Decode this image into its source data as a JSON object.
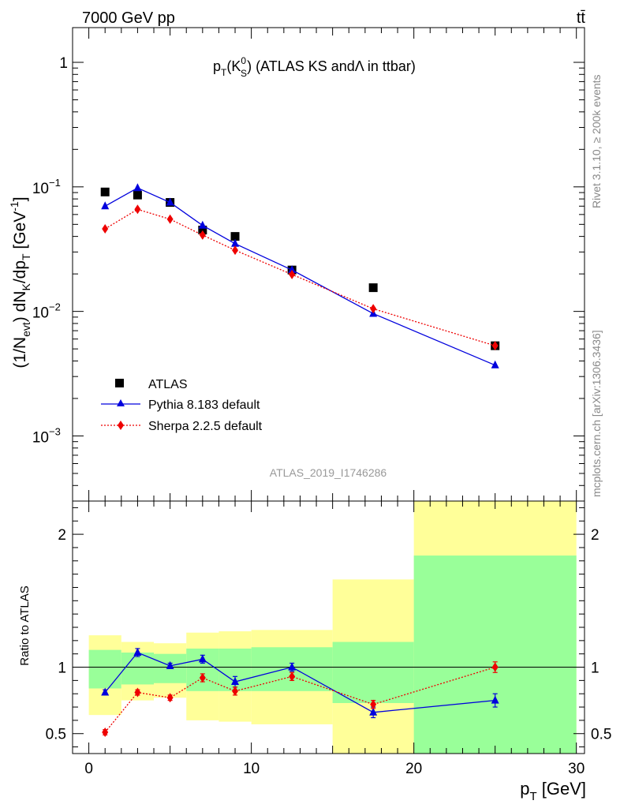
{
  "header": {
    "energy_label": "7000 GeV pp",
    "process_label": "tt̄"
  },
  "side_labels": {
    "rivet": "Rivet 3.1.10, ≥ 200k events",
    "mcplots": "mcplots.cern.ch [arXiv:1306.3436]"
  },
  "chart_data": [
    {
      "type": "scatter",
      "panel": "main",
      "title_parts": {
        "p": "p",
        "T": "T",
        "open": "(K",
        "sup": "0",
        "sub": "S",
        "close": ")",
        "rest": " (ATLAS KS andΛ in ttbar)"
      },
      "watermark": "ATLAS_2019_I1746286",
      "ylabel_parts": {
        "a": "(1/N",
        "b": "evt",
        "c": ") dN",
        "d": "K",
        "e": "/dp",
        "f": "T",
        "g": " [GeV",
        "h": "-1",
        "i": "]"
      },
      "yscale": "log",
      "xlim": [
        -1,
        30.5
      ],
      "ylim": [
        0.0003,
        1.9
      ],
      "yticks": [
        {
          "value": 1,
          "label": "1"
        },
        {
          "value": 0.1,
          "mant": "10",
          "exp": "−1"
        },
        {
          "value": 0.01,
          "mant": "10",
          "exp": "−2"
        },
        {
          "value": 0.001,
          "mant": "10",
          "exp": "−3"
        }
      ],
      "legend_position": "bottom-left",
      "series": [
        {
          "name": "ATLAS",
          "marker": "square",
          "color": "#000000",
          "x": [
            1,
            3,
            5,
            7,
            9,
            12.5,
            17.5,
            25
          ],
          "y": [
            0.091,
            0.086,
            0.075,
            0.045,
            0.04,
            0.0215,
            0.0155,
            0.0053
          ]
        },
        {
          "name": "Pythia 8.183 default",
          "marker": "triangle",
          "color": "#0000dd",
          "line": "solid",
          "x": [
            1,
            3,
            5,
            7,
            9,
            12.5,
            17.5,
            25
          ],
          "y": [
            0.07,
            0.098,
            0.075,
            0.049,
            0.035,
            0.0215,
            0.0096,
            0.0037
          ]
        },
        {
          "name": "Sherpa 2.2.5 default",
          "marker": "diamond",
          "color": "#ee0000",
          "line": "dotted",
          "x": [
            1,
            3,
            5,
            7,
            9,
            12.5,
            17.5,
            25
          ],
          "y": [
            0.046,
            0.066,
            0.055,
            0.041,
            0.031,
            0.0198,
            0.0105,
            0.0053
          ]
        }
      ]
    },
    {
      "type": "scatter",
      "panel": "ratio",
      "ylabel": "Ratio to ATLAS",
      "xlabel": {
        "p": "p",
        "T": "T",
        "unit": " [GeV]"
      },
      "xlim": [
        -1,
        30.5
      ],
      "ylim": [
        0.35,
        2.25
      ],
      "xticks": [
        0,
        10,
        20,
        30
      ],
      "yticks": [
        0.5,
        1,
        2
      ],
      "reference_line": 1,
      "bands": [
        {
          "x0": 0,
          "x1": 2,
          "yellow": [
            0.64,
            1.24
          ],
          "green": [
            0.84,
            1.13
          ]
        },
        {
          "x0": 2,
          "x1": 4,
          "yellow": [
            0.75,
            1.19
          ],
          "green": [
            0.87,
            1.11
          ]
        },
        {
          "x0": 4,
          "x1": 6,
          "yellow": [
            0.77,
            1.18
          ],
          "green": [
            0.88,
            1.1
          ]
        },
        {
          "x0": 6,
          "x1": 8,
          "yellow": [
            0.6,
            1.26
          ],
          "green": [
            0.82,
            1.14
          ]
        },
        {
          "x0": 8,
          "x1": 10,
          "yellow": [
            0.59,
            1.27
          ],
          "green": [
            0.82,
            1.14
          ]
        },
        {
          "x0": 10,
          "x1": 15,
          "yellow": [
            0.57,
            1.28
          ],
          "green": [
            0.82,
            1.15
          ]
        },
        {
          "x0": 15,
          "x1": 20,
          "yellow": [
            0.35,
            1.66
          ],
          "green": [
            0.73,
            1.19
          ]
        },
        {
          "x0": 20,
          "x1": 30,
          "yellow": [
            0.35,
            2.25
          ],
          "green": [
            0.35,
            1.84
          ]
        }
      ],
      "series": [
        {
          "name": "Pythia 8.183 default",
          "marker": "triangle",
          "color": "#0000dd",
          "line": "solid",
          "x": [
            1,
            3,
            5,
            7,
            9,
            12.5,
            17.5,
            25
          ],
          "y": [
            0.81,
            1.11,
            1.01,
            1.06,
            0.89,
            1.0,
            0.66,
            0.75
          ],
          "err": [
            0.02,
            0.03,
            0.02,
            0.03,
            0.04,
            0.03,
            0.04,
            0.05
          ]
        },
        {
          "name": "Sherpa 2.2.5 default",
          "marker": "diamond",
          "color": "#ee0000",
          "line": "dotted",
          "x": [
            1,
            3,
            5,
            7,
            9,
            12.5,
            17.5,
            25
          ],
          "y": [
            0.51,
            0.81,
            0.77,
            0.92,
            0.82,
            0.93,
            0.72,
            1.0
          ],
          "err": [
            0.02,
            0.02,
            0.02,
            0.03,
            0.03,
            0.03,
            0.03,
            0.04
          ]
        }
      ]
    }
  ]
}
